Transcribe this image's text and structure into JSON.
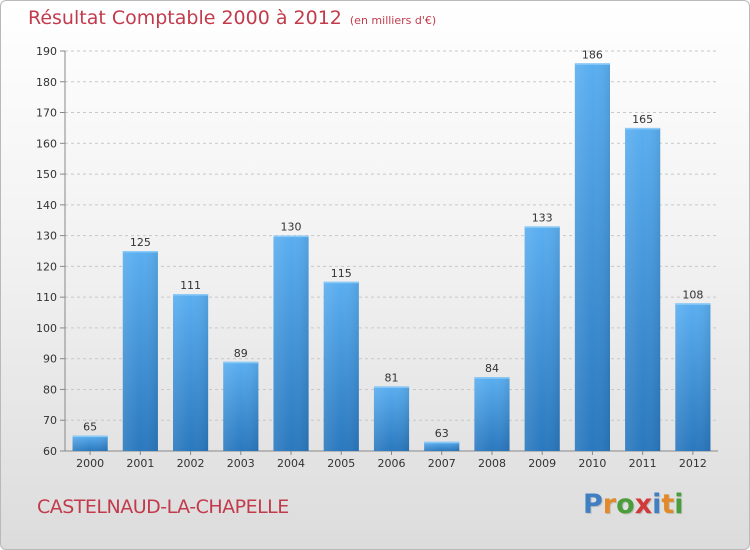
{
  "title": "Résultat Comptable 2000 à 2012",
  "unit": "(en milliers d'€)",
  "commune": "CASTELNAUD-LA-CHAPELLE",
  "logo": {
    "text": "Proxiti",
    "letter_colors": [
      "#3f7fc2",
      "#e2892a",
      "#4a9d3a",
      "#d23a3a",
      "#3f7fc2",
      "#e2892a",
      "#4a9d3a"
    ]
  },
  "colors": {
    "bar_light": "#5aaef0",
    "bar_dark": "#2a78be",
    "title": "#c23b4c"
  },
  "chart_data": {
    "type": "bar",
    "categories": [
      "2000",
      "2001",
      "2002",
      "2003",
      "2004",
      "2005",
      "2006",
      "2007",
      "2008",
      "2009",
      "2010",
      "2011",
      "2012"
    ],
    "values": [
      65,
      125,
      111,
      89,
      130,
      115,
      81,
      63,
      84,
      133,
      186,
      165,
      108
    ],
    "ylim": [
      60,
      190
    ],
    "yticks": [
      60,
      70,
      80,
      90,
      100,
      110,
      120,
      130,
      140,
      150,
      160,
      170,
      180,
      190
    ],
    "grid": true,
    "data_labels": true
  }
}
